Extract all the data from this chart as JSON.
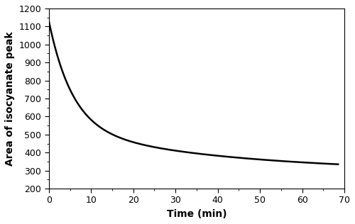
{
  "title": "",
  "xlabel": "Time (min)",
  "ylabel": "Area of isocyanate peak",
  "xlim": [
    0,
    70
  ],
  "ylim": [
    200,
    1200
  ],
  "xticks": [
    0,
    10,
    20,
    30,
    40,
    50,
    60,
    70
  ],
  "yticks": [
    200,
    300,
    400,
    500,
    600,
    700,
    800,
    900,
    1000,
    1100,
    1200
  ],
  "line_color": "#000000",
  "line_width": 1.8,
  "background_color": "#ffffff",
  "x_end": 68.5,
  "y_asymptote": 290.0,
  "A1": 590.0,
  "k1": 0.18,
  "A2": 250.0,
  "k2": 0.025
}
